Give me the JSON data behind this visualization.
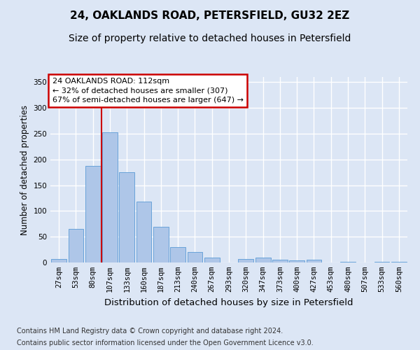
{
  "title": "24, OAKLANDS ROAD, PETERSFIELD, GU32 2EZ",
  "subtitle": "Size of property relative to detached houses in Petersfield",
  "xlabel": "Distribution of detached houses by size in Petersfield",
  "ylabel": "Number of detached properties",
  "bin_labels": [
    "27sqm",
    "53sqm",
    "80sqm",
    "107sqm",
    "133sqm",
    "160sqm",
    "187sqm",
    "213sqm",
    "240sqm",
    "267sqm",
    "293sqm",
    "320sqm",
    "347sqm",
    "373sqm",
    "400sqm",
    "427sqm",
    "453sqm",
    "480sqm",
    "507sqm",
    "533sqm",
    "560sqm"
  ],
  "bar_values": [
    7,
    65,
    187,
    253,
    175,
    118,
    69,
    30,
    20,
    10,
    0,
    7,
    10,
    5,
    4,
    5,
    0,
    1,
    0,
    2,
    1
  ],
  "bar_color": "#aec6e8",
  "bar_edge_color": "#5b9bd5",
  "bar_width": 0.9,
  "ylim": [
    0,
    360
  ],
  "yticks": [
    0,
    50,
    100,
    150,
    200,
    250,
    300,
    350
  ],
  "red_line_bin_index": 3,
  "annotation_title": "24 OAKLANDS ROAD: 112sqm",
  "annotation_line1": "← 32% of detached houses are smaller (307)",
  "annotation_line2": "67% of semi-detached houses are larger (647) →",
  "annotation_box_color": "#ffffff",
  "annotation_box_edge": "#cc0000",
  "red_line_color": "#cc0000",
  "background_color": "#dce6f5",
  "plot_bg_color": "#dce6f5",
  "grid_color": "#ffffff",
  "footnote1": "Contains HM Land Registry data © Crown copyright and database right 2024.",
  "footnote2": "Contains public sector information licensed under the Open Government Licence v3.0.",
  "title_fontsize": 11,
  "subtitle_fontsize": 10,
  "xlabel_fontsize": 9.5,
  "ylabel_fontsize": 8.5,
  "tick_fontsize": 7.5,
  "annot_fontsize": 8,
  "footnote_fontsize": 7
}
